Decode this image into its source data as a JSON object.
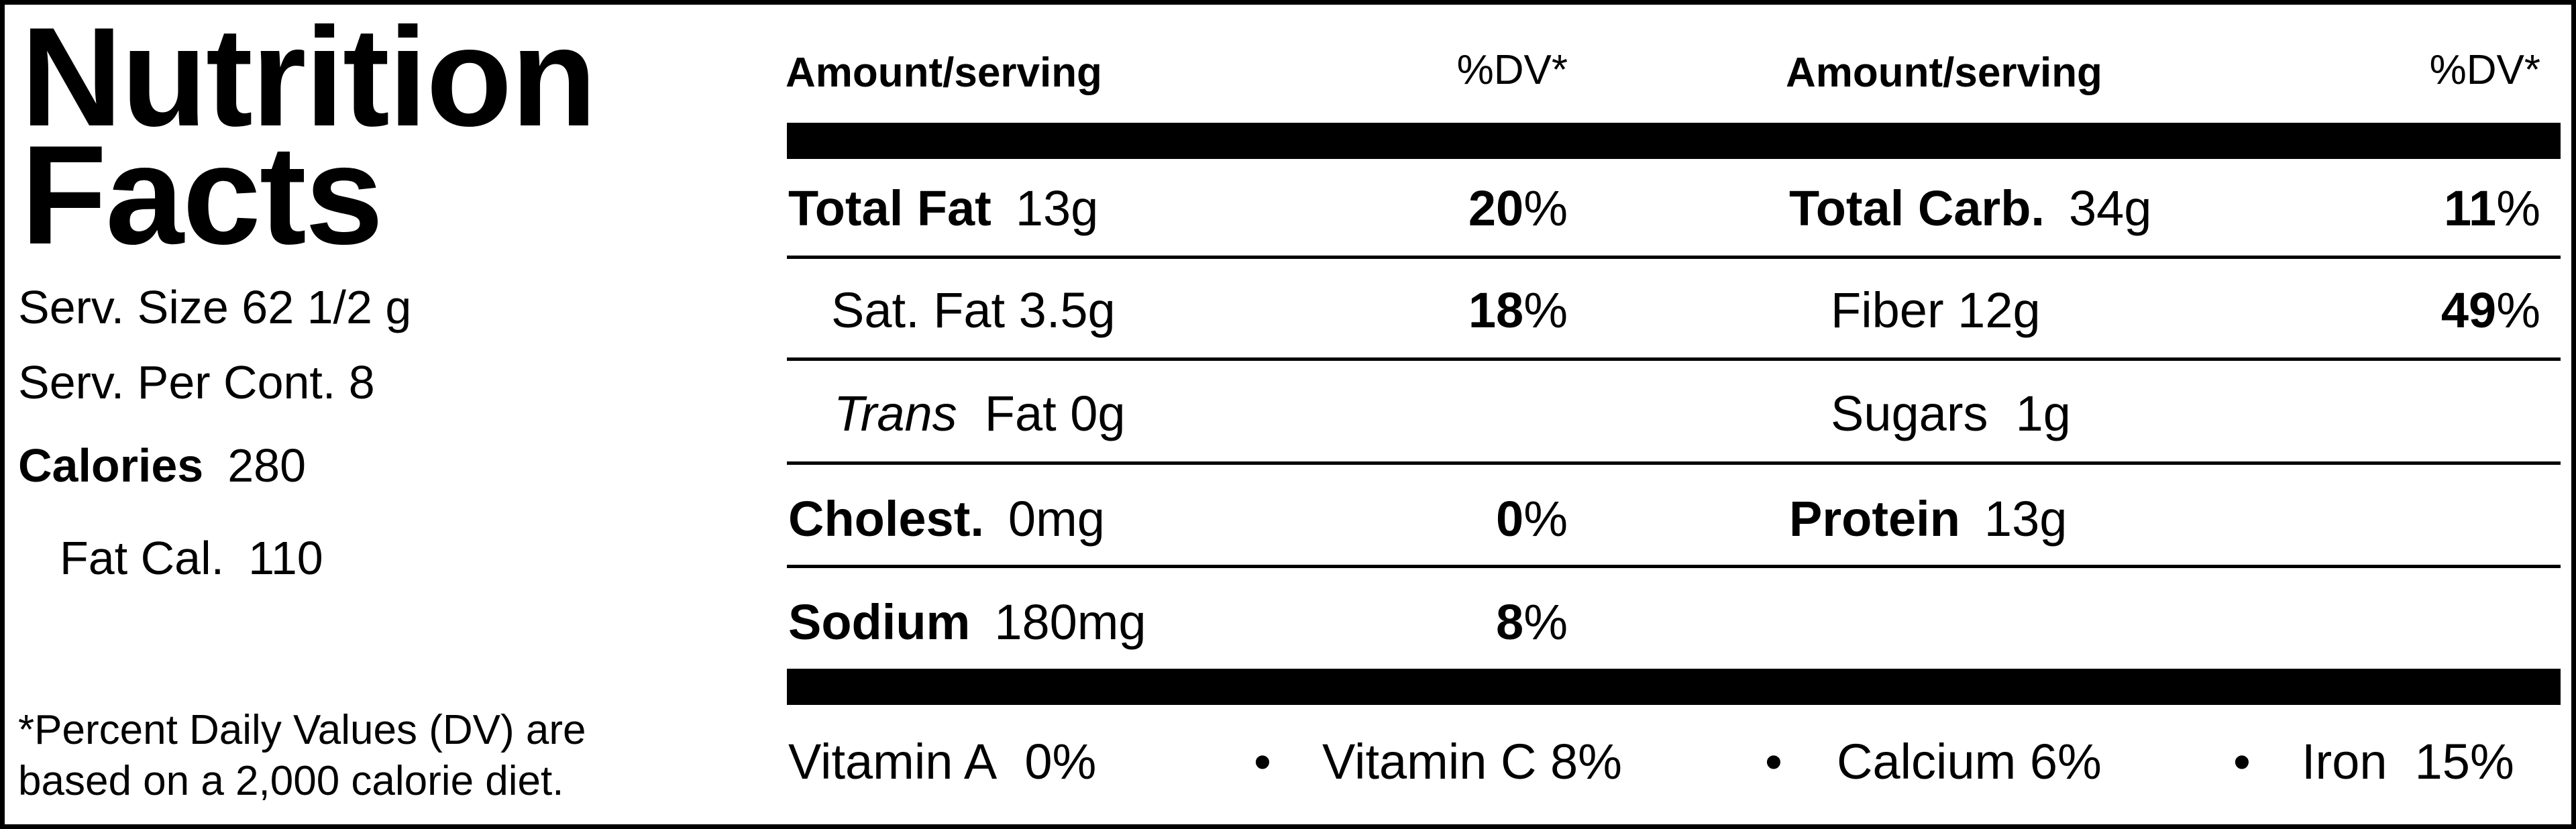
{
  "title_lines": [
    "Nutrition",
    "Facts"
  ],
  "serving": {
    "size_label": "Serv. Size",
    "size": "62 1/2 g",
    "per_container_label": "Serv. Per Cont.",
    "per_container": "8"
  },
  "calories": {
    "label": "Calories",
    "value": "280"
  },
  "fat_calories": {
    "label": "Fat Cal.",
    "value": "110"
  },
  "footnote": [
    "*Percent Daily Values (DV) are",
    "based on a 2,000 calorie diet."
  ],
  "columns": [
    {
      "amount_header": "Amount/serving",
      "dv_header": "%DV*",
      "rows": [
        {
          "label": "Total Fat",
          "amount": "13g",
          "dv": "20",
          "dv_unit": "%"
        },
        {
          "label": "Sat. Fat",
          "amount": "3.5g",
          "dv": "18",
          "dv_unit": "%"
        },
        {
          "label_italic": "Trans",
          "label": "Fat",
          "amount": "0g"
        },
        {
          "label": "Cholest.",
          "amount": "0mg",
          "dv": "0",
          "dv_unit": "%"
        },
        {
          "label": "Sodium",
          "amount": "180mg",
          "dv": "8",
          "dv_unit": "%"
        }
      ]
    },
    {
      "amount_header": "Amount/serving",
      "dv_header": "%DV*",
      "rows": [
        {
          "label": "Total Carb.",
          "amount": "34g",
          "dv": "11",
          "dv_unit": "%"
        },
        {
          "label": "Fiber",
          "amount": "12g",
          "dv": "49",
          "dv_unit": "%"
        },
        {
          "label": "Sugars",
          "amount": "1g"
        },
        {
          "label": "Protein",
          "amount": "13g"
        }
      ]
    }
  ],
  "vitamins": {
    "separator": "•",
    "items": [
      {
        "name": "Vitamin A",
        "value": "0",
        "unit": "%"
      },
      {
        "name": "Vitamin C",
        "value": "8",
        "unit": "%"
      },
      {
        "name": "Calcium",
        "value": "6",
        "unit": "%"
      },
      {
        "name": "Iron",
        "value": "15",
        "unit": "%"
      }
    ]
  }
}
